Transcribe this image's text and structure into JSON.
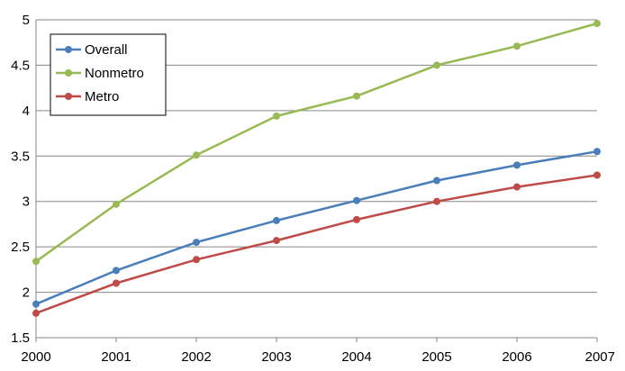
{
  "chart_data": {
    "type": "line",
    "title": "",
    "xlabel": "",
    "ylabel": "",
    "x": [
      "2000",
      "2001",
      "2002",
      "2003",
      "2004",
      "2005",
      "2006",
      "2007"
    ],
    "ylim": [
      1.5,
      5
    ],
    "yticks": [
      "1.5",
      "2",
      "2.5",
      "3",
      "3.5",
      "4",
      "4.5",
      "5"
    ],
    "grid": "horizontal",
    "legend_position": "top-left",
    "series": [
      {
        "name": "Overall",
        "color": "#4a7ebb",
        "values": [
          1.87,
          2.24,
          2.55,
          2.79,
          3.01,
          3.23,
          3.4,
          3.55
        ]
      },
      {
        "name": "Nonmetro",
        "color": "#98b954",
        "values": [
          2.34,
          2.97,
          3.51,
          3.94,
          4.16,
          4.5,
          4.71,
          4.96
        ]
      },
      {
        "name": "Metro",
        "color": "#be4b48",
        "values": [
          1.77,
          2.1,
          2.36,
          2.57,
          2.8,
          3.0,
          3.16,
          3.29
        ]
      }
    ]
  }
}
